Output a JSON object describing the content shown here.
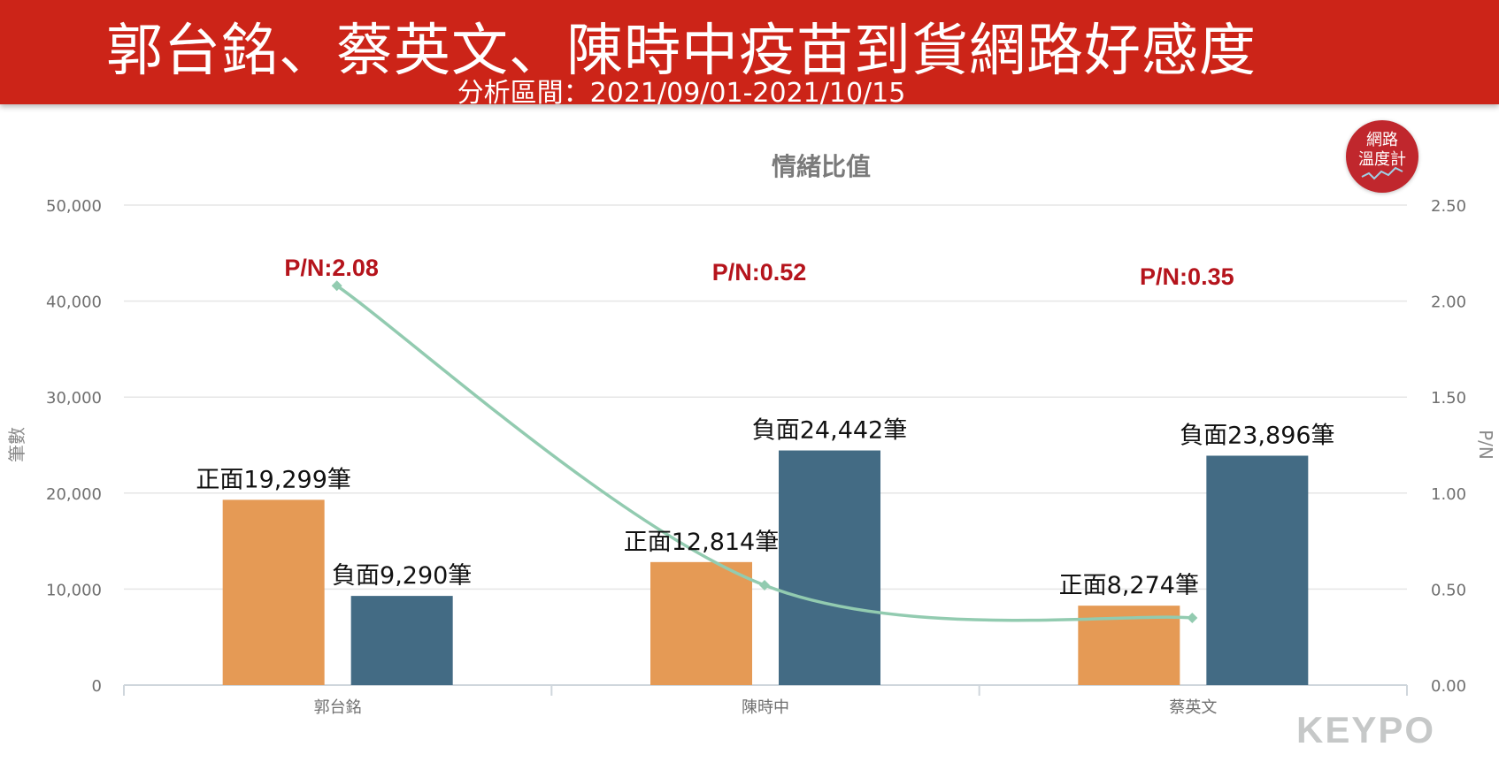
{
  "header": {
    "title": "郭台銘、蔡英文、陳時中疫苗到貨網路好感度",
    "subtitle": "分析區間：2021/09/01-2021/10/15"
  },
  "badge": {
    "line1": "網路",
    "line2": "溫度計"
  },
  "watermark": "KEYPO",
  "chart_data": {
    "type": "bar",
    "title": "情緒比值",
    "ylabel": "筆數",
    "y2label": "P/N",
    "ylim": [
      0,
      50000
    ],
    "y2lim": [
      0,
      2.5
    ],
    "yticks": [
      "0",
      "10,000",
      "20,000",
      "30,000",
      "40,000",
      "50,000"
    ],
    "y2ticks": [
      "0.00",
      "0.50",
      "1.00",
      "1.50",
      "2.00",
      "2.50"
    ],
    "categories": [
      "郭台銘",
      "陳時中",
      "蔡英文"
    ],
    "series": [
      {
        "values": [
          19299,
          12814,
          8274
        ],
        "labels": [
          "正面19,299筆",
          "正面12,814筆",
          "正面8,274筆"
        ],
        "color": "#e59a55"
      },
      {
        "values": [
          9290,
          24442,
          23896
        ],
        "labels": [
          "負面9,290筆",
          "負面24,442筆",
          "負面23,896筆"
        ],
        "color": "#436b84"
      }
    ],
    "line": {
      "values": [
        2.08,
        0.52,
        0.35
      ],
      "labels": [
        "P/N:2.08",
        "P/N:0.52",
        "P/N:0.35"
      ],
      "color": "#92cbb0",
      "label_color": "#b5141c"
    },
    "grid": true
  }
}
